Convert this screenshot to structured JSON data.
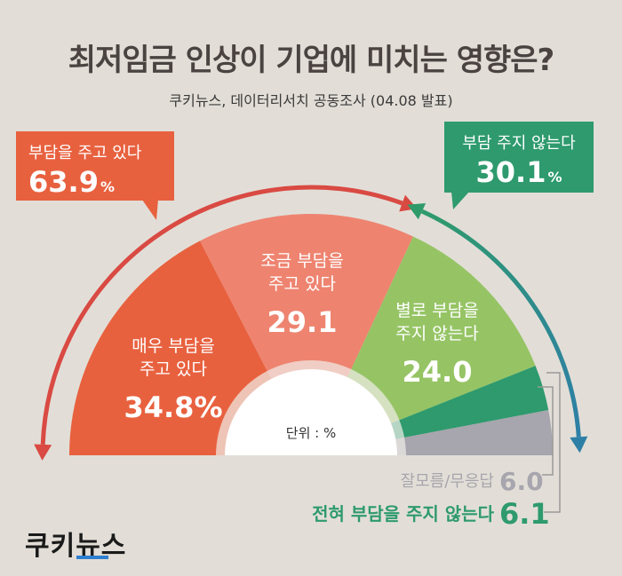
{
  "title": "최저임금 인상이 기업에 미치는 영향은?",
  "subtitle": "쿠키뉴스, 데이터리서치 공동조사 (04.08 발표)",
  "callouts": {
    "burden": {
      "label": "부담을 주고 있다",
      "value": "63.9",
      "unit": "%"
    },
    "no_burden": {
      "label": "부담 주지 않는다",
      "value": "30.1",
      "unit": "%"
    }
  },
  "unit_label": "단위 : %",
  "brand": "쿠키뉴스",
  "chart_data": {
    "type": "pie",
    "layout": "semicircle",
    "unit": "%",
    "slices": [
      {
        "name": "매우 부담을 주고 있다",
        "value": 34.8,
        "label_value": "34.8%",
        "color": "#e8613f"
      },
      {
        "name": "조금 부담을 주고 있다",
        "value": 29.1,
        "label_value": "29.1",
        "color": "#ee8470"
      },
      {
        "name": "별로 부담을 주지 않는다",
        "value": 24.0,
        "label_value": "24.0",
        "color": "#96c465"
      },
      {
        "name": "전혀 부담을 주지 않는다",
        "value": 6.1,
        "label_value": "6.1",
        "color": "#2e9a6e"
      },
      {
        "name": "잘모름/무응답",
        "value": 6.0,
        "label_value": "6.0",
        "color": "#a7a5ad"
      }
    ],
    "groups": [
      {
        "name": "부담을 주고 있다",
        "value": 63.9
      },
      {
        "name": "부담 주지 않는다",
        "value": 30.1
      }
    ],
    "colors": {
      "burden_arrow": "#d94a43",
      "no_burden_arrow_start": "#2f9b6a",
      "no_burden_arrow_end": "#2e7fa6",
      "background": "#e2ded7"
    }
  }
}
